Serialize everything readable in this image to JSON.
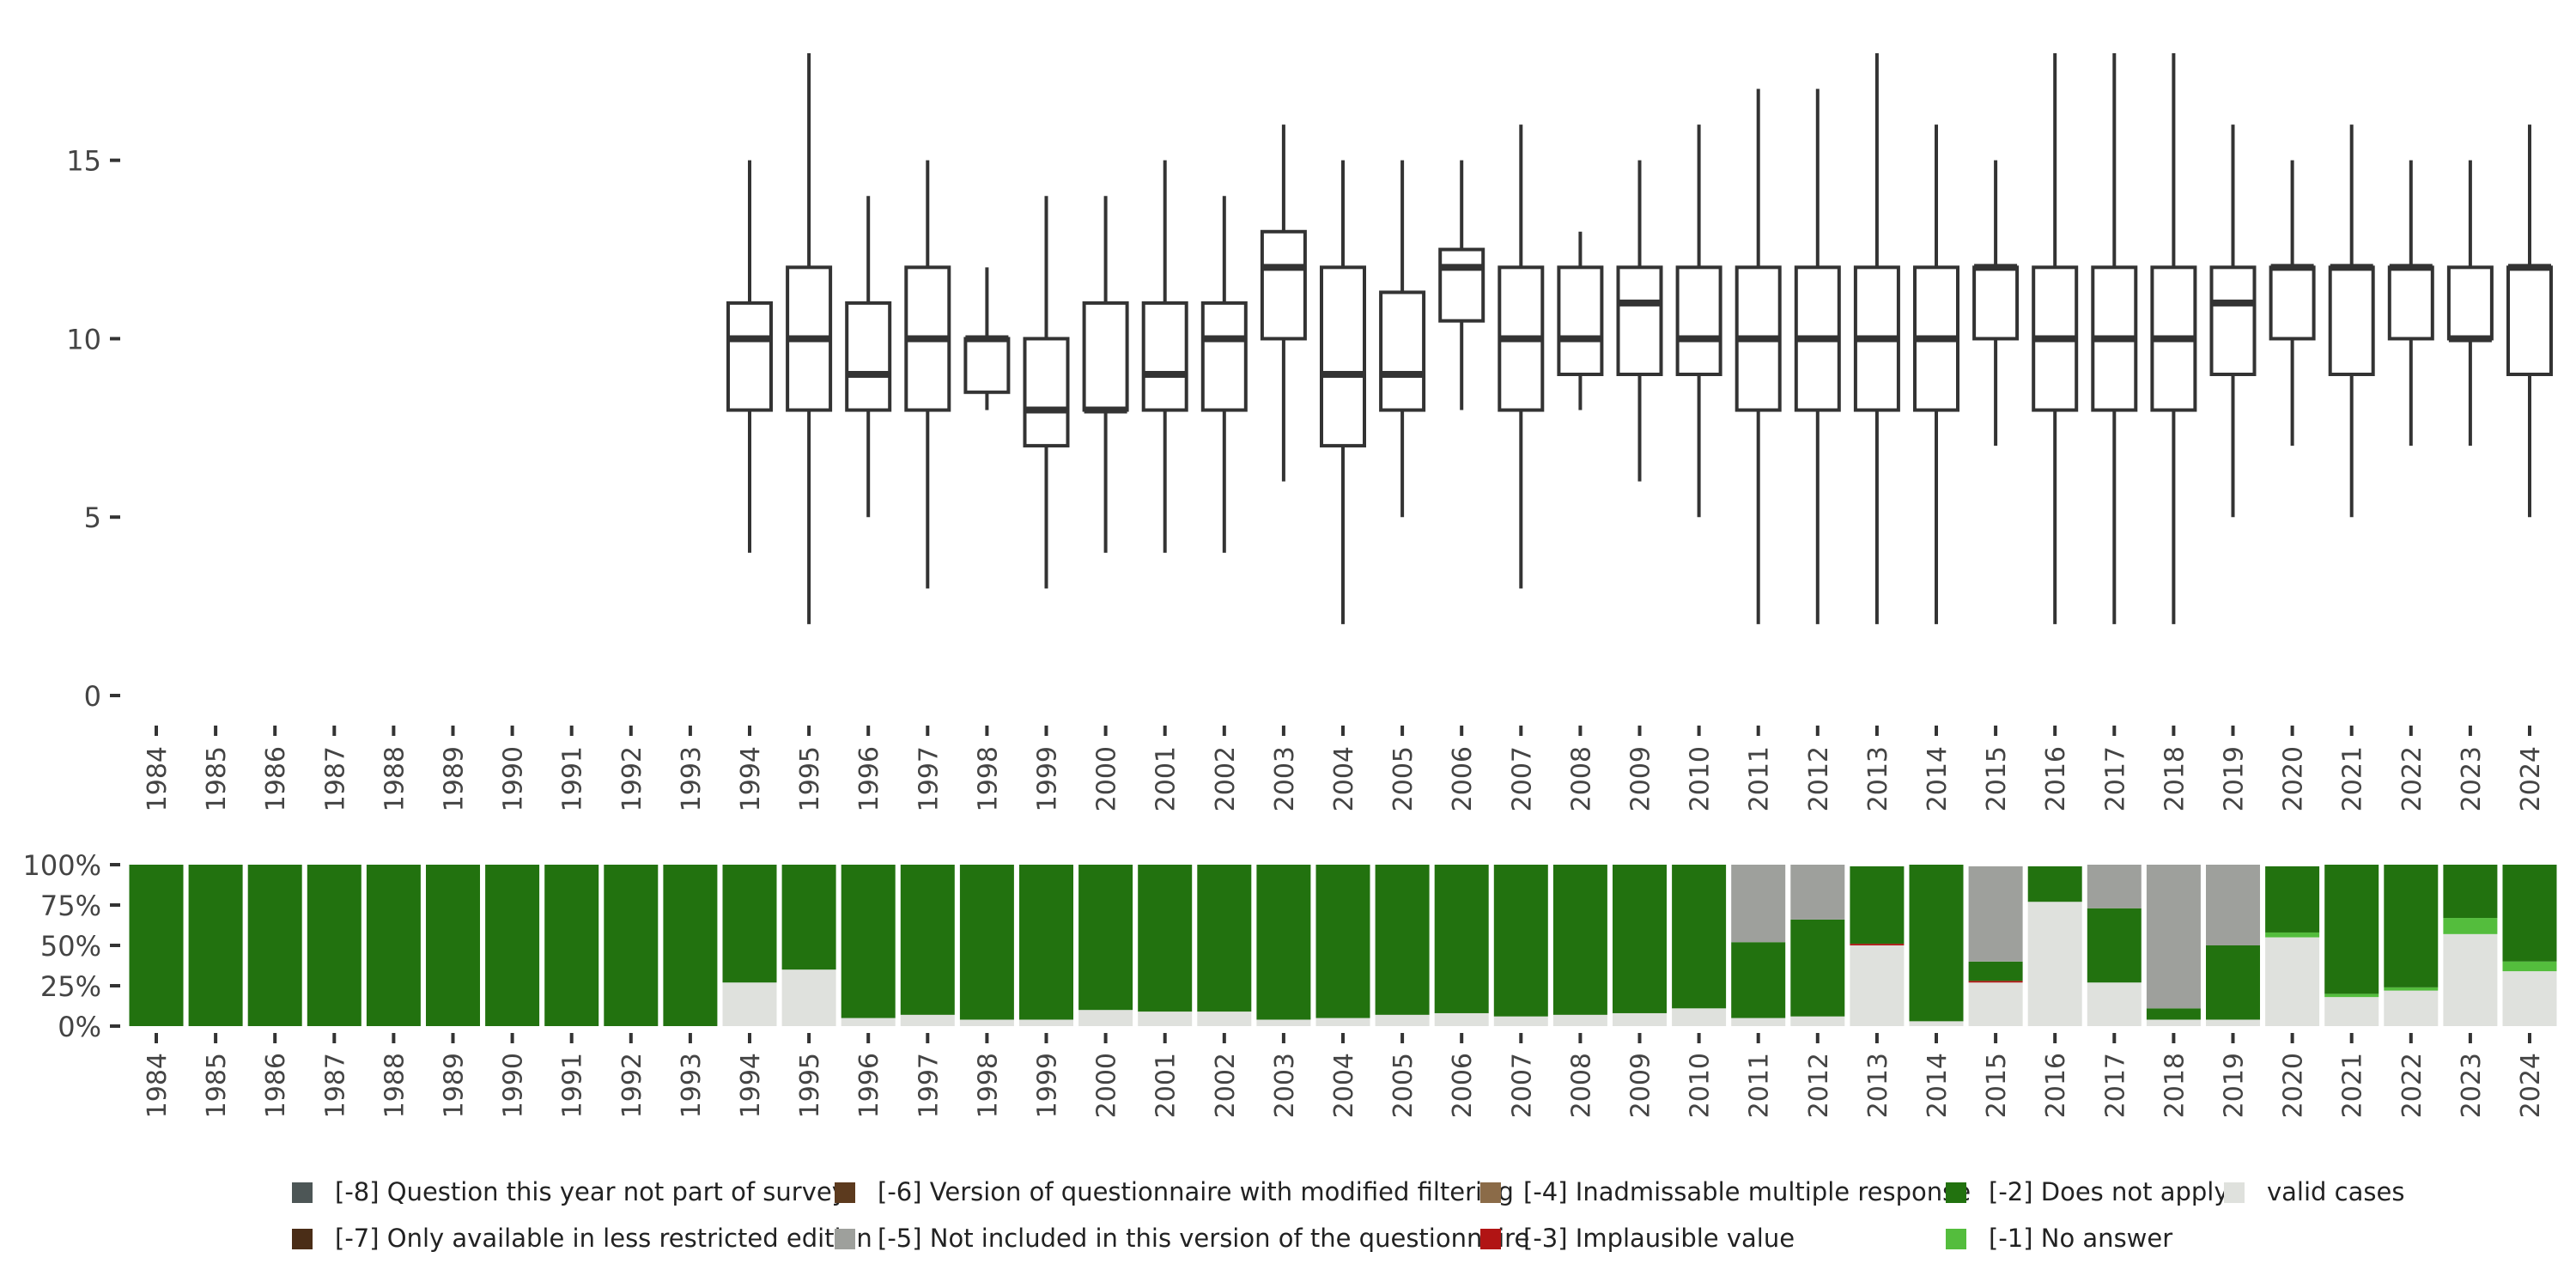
{
  "chart_data": [
    {
      "type": "boxplot",
      "ylim": [
        0,
        18
      ],
      "yticks": [
        0,
        5,
        10,
        15
      ],
      "categories": [
        "1984",
        "1985",
        "1986",
        "1987",
        "1988",
        "1989",
        "1990",
        "1991",
        "1992",
        "1993",
        "1994",
        "1995",
        "1996",
        "1997",
        "1998",
        "1999",
        "2000",
        "2001",
        "2002",
        "2003",
        "2004",
        "2005",
        "2006",
        "2007",
        "2008",
        "2009",
        "2010",
        "2011",
        "2012",
        "2013",
        "2014",
        "2015",
        "2016",
        "2017",
        "2018",
        "2019",
        "2020",
        "2021",
        "2022",
        "2023",
        "2024"
      ],
      "boxes": [
        null,
        null,
        null,
        null,
        null,
        null,
        null,
        null,
        null,
        null,
        {
          "min": 4,
          "q1": 8,
          "median": 10,
          "q3": 11,
          "max": 15
        },
        {
          "min": 2,
          "q1": 8,
          "median": 10,
          "q3": 12,
          "max": 18
        },
        {
          "min": 5,
          "q1": 8,
          "median": 9,
          "q3": 11,
          "max": 14
        },
        {
          "min": 3,
          "q1": 8,
          "median": 10,
          "q3": 12,
          "max": 15
        },
        {
          "min": 8,
          "q1": 8.5,
          "median": 10,
          "q3": 10,
          "max": 12
        },
        {
          "min": 3,
          "q1": 7,
          "median": 8,
          "q3": 10,
          "max": 14
        },
        {
          "min": 4,
          "q1": 8,
          "median": 8,
          "q3": 11,
          "max": 14
        },
        {
          "min": 4,
          "q1": 8,
          "median": 9,
          "q3": 11,
          "max": 15
        },
        {
          "min": 4,
          "q1": 8,
          "median": 10,
          "q3": 11,
          "max": 14
        },
        {
          "min": 6,
          "q1": 10,
          "median": 12,
          "q3": 13,
          "max": 16
        },
        {
          "min": 2,
          "q1": 7,
          "median": 9,
          "q3": 12,
          "max": 15
        },
        {
          "min": 5,
          "q1": 8,
          "median": 9,
          "q3": 11.3,
          "max": 15
        },
        {
          "min": 8,
          "q1": 10.5,
          "median": 12,
          "q3": 12.5,
          "max": 15
        },
        {
          "min": 3,
          "q1": 8,
          "median": 10,
          "q3": 12,
          "max": 16
        },
        {
          "min": 8,
          "q1": 9,
          "median": 10,
          "q3": 12,
          "max": 13
        },
        {
          "min": 6,
          "q1": 9,
          "median": 11,
          "q3": 12,
          "max": 15
        },
        {
          "min": 5,
          "q1": 9,
          "median": 10,
          "q3": 12,
          "max": 16
        },
        {
          "min": 2,
          "q1": 8,
          "median": 10,
          "q3": 12,
          "max": 17
        },
        {
          "min": 2,
          "q1": 8,
          "median": 10,
          "q3": 12,
          "max": 17
        },
        {
          "min": 2,
          "q1": 8,
          "median": 10,
          "q3": 12,
          "max": 18
        },
        {
          "min": 2,
          "q1": 8,
          "median": 10,
          "q3": 12,
          "max": 16
        },
        {
          "min": 7,
          "q1": 10,
          "median": 12,
          "q3": 12,
          "max": 15
        },
        {
          "min": 2,
          "q1": 8,
          "median": 10,
          "q3": 12,
          "max": 18
        },
        {
          "min": 2,
          "q1": 8,
          "median": 10,
          "q3": 12,
          "max": 18
        },
        {
          "min": 2,
          "q1": 8,
          "median": 10,
          "q3": 12,
          "max": 18
        },
        {
          "min": 5,
          "q1": 9,
          "median": 11,
          "q3": 12,
          "max": 16
        },
        {
          "min": 7,
          "q1": 10,
          "median": 12,
          "q3": 12,
          "max": 15
        },
        {
          "min": 5,
          "q1": 9,
          "median": 12,
          "q3": 12,
          "max": 16
        },
        {
          "min": 7,
          "q1": 10,
          "median": 12,
          "q3": 12,
          "max": 15
        },
        {
          "min": 7,
          "q1": 10,
          "median": 10,
          "q3": 12,
          "max": 15
        },
        {
          "min": 5,
          "q1": 9,
          "median": 12,
          "q3": 12,
          "max": 16
        }
      ]
    },
    {
      "type": "stacked-bar",
      "percent": true,
      "yticks": [
        0,
        0.25,
        0.5,
        0.75,
        1
      ],
      "ytick_labels": [
        "0%",
        "25%",
        "50%",
        "75%",
        "100%"
      ],
      "categories": [
        "1984",
        "1985",
        "1986",
        "1987",
        "1988",
        "1989",
        "1990",
        "1991",
        "1992",
        "1993",
        "1994",
        "1995",
        "1996",
        "1997",
        "1998",
        "1999",
        "2000",
        "2001",
        "2002",
        "2003",
        "2004",
        "2005",
        "2006",
        "2007",
        "2008",
        "2009",
        "2010",
        "2011",
        "2012",
        "2013",
        "2014",
        "2015",
        "2016",
        "2017",
        "2018",
        "2019",
        "2020",
        "2021",
        "2022",
        "2023",
        "2024"
      ],
      "stack_order": [
        "valid",
        "n1",
        "n3",
        "n2",
        "n5"
      ],
      "series": [
        {
          "key": "valid",
          "values": [
            0,
            0,
            0,
            0,
            0,
            0,
            0,
            0,
            0,
            0,
            0.27,
            0.35,
            0.05,
            0.07,
            0.04,
            0.04,
            0.1,
            0.09,
            0.09,
            0.04,
            0.05,
            0.07,
            0.08,
            0.06,
            0.07,
            0.08,
            0.11,
            0.05,
            0.06,
            0.5,
            0.03,
            0.27,
            0.77,
            0.27,
            0.04,
            0.04,
            0.55,
            0.18,
            0.22,
            0.57,
            0.34
          ]
        },
        {
          "key": "n1",
          "values": [
            0,
            0,
            0,
            0,
            0,
            0,
            0,
            0,
            0,
            0,
            0,
            0,
            0,
            0,
            0,
            0,
            0,
            0,
            0,
            0,
            0,
            0,
            0,
            0,
            0,
            0,
            0,
            0,
            0,
            0,
            0,
            0,
            0,
            0,
            0,
            0,
            0.03,
            0.02,
            0.02,
            0.1,
            0.06
          ]
        },
        {
          "key": "n3",
          "values": [
            0,
            0,
            0,
            0,
            0,
            0,
            0,
            0,
            0,
            0,
            0,
            0,
            0,
            0,
            0,
            0,
            0,
            0,
            0,
            0,
            0,
            0,
            0,
            0,
            0,
            0,
            0,
            0,
            0,
            0.01,
            0,
            0.01,
            0,
            0,
            0,
            0,
            0,
            0,
            0,
            0,
            0
          ]
        },
        {
          "key": "n2",
          "values": [
            1,
            1,
            1,
            1,
            1,
            1,
            1,
            1,
            1,
            1,
            0.73,
            0.65,
            0.95,
            0.93,
            0.96,
            0.96,
            0.9,
            0.91,
            0.91,
            0.96,
            0.95,
            0.93,
            0.92,
            0.94,
            0.93,
            0.92,
            0.89,
            0.47,
            0.6,
            0.48,
            0.97,
            0.12,
            0.22,
            0.46,
            0.07,
            0.46,
            0.41,
            0.8,
            0.76,
            0.33,
            0.6
          ]
        },
        {
          "key": "n5",
          "values": [
            0,
            0,
            0,
            0,
            0,
            0,
            0,
            0,
            0,
            0,
            0,
            0,
            0,
            0,
            0,
            0,
            0,
            0,
            0,
            0,
            0,
            0,
            0,
            0,
            0,
            0,
            0,
            0.48,
            0.34,
            0,
            0,
            0.59,
            0,
            0.27,
            0.89,
            0.5,
            0,
            0,
            0,
            0,
            0
          ]
        }
      ]
    }
  ],
  "legend": [
    {
      "key": "n8",
      "label": "[-8] Question this year not part of survey",
      "color": "#4d5656"
    },
    {
      "key": "n7",
      "label": "[-7] Only available in less restricted edition",
      "color": "#4a2d17"
    },
    {
      "key": "n6",
      "label": "[-6] Version of questionnaire with modified filtering",
      "color": "#5c3a1e"
    },
    {
      "key": "n5",
      "label": "[-5] Not included in this version of the questionnaire",
      "color": "#9ea09c"
    },
    {
      "key": "n4",
      "label": "[-4] Inadmissable multiple response",
      "color": "#8b6b48"
    },
    {
      "key": "n3",
      "label": "[-3] Implausible value",
      "color": "#b11414"
    },
    {
      "key": "n2",
      "label": "[-2] Does not apply",
      "color": "#22720f"
    },
    {
      "key": "n1",
      "label": "[-1] No answer",
      "color": "#54bd3d"
    },
    {
      "key": "valid",
      "label": "valid cases",
      "color": "#dfe1dd"
    }
  ]
}
